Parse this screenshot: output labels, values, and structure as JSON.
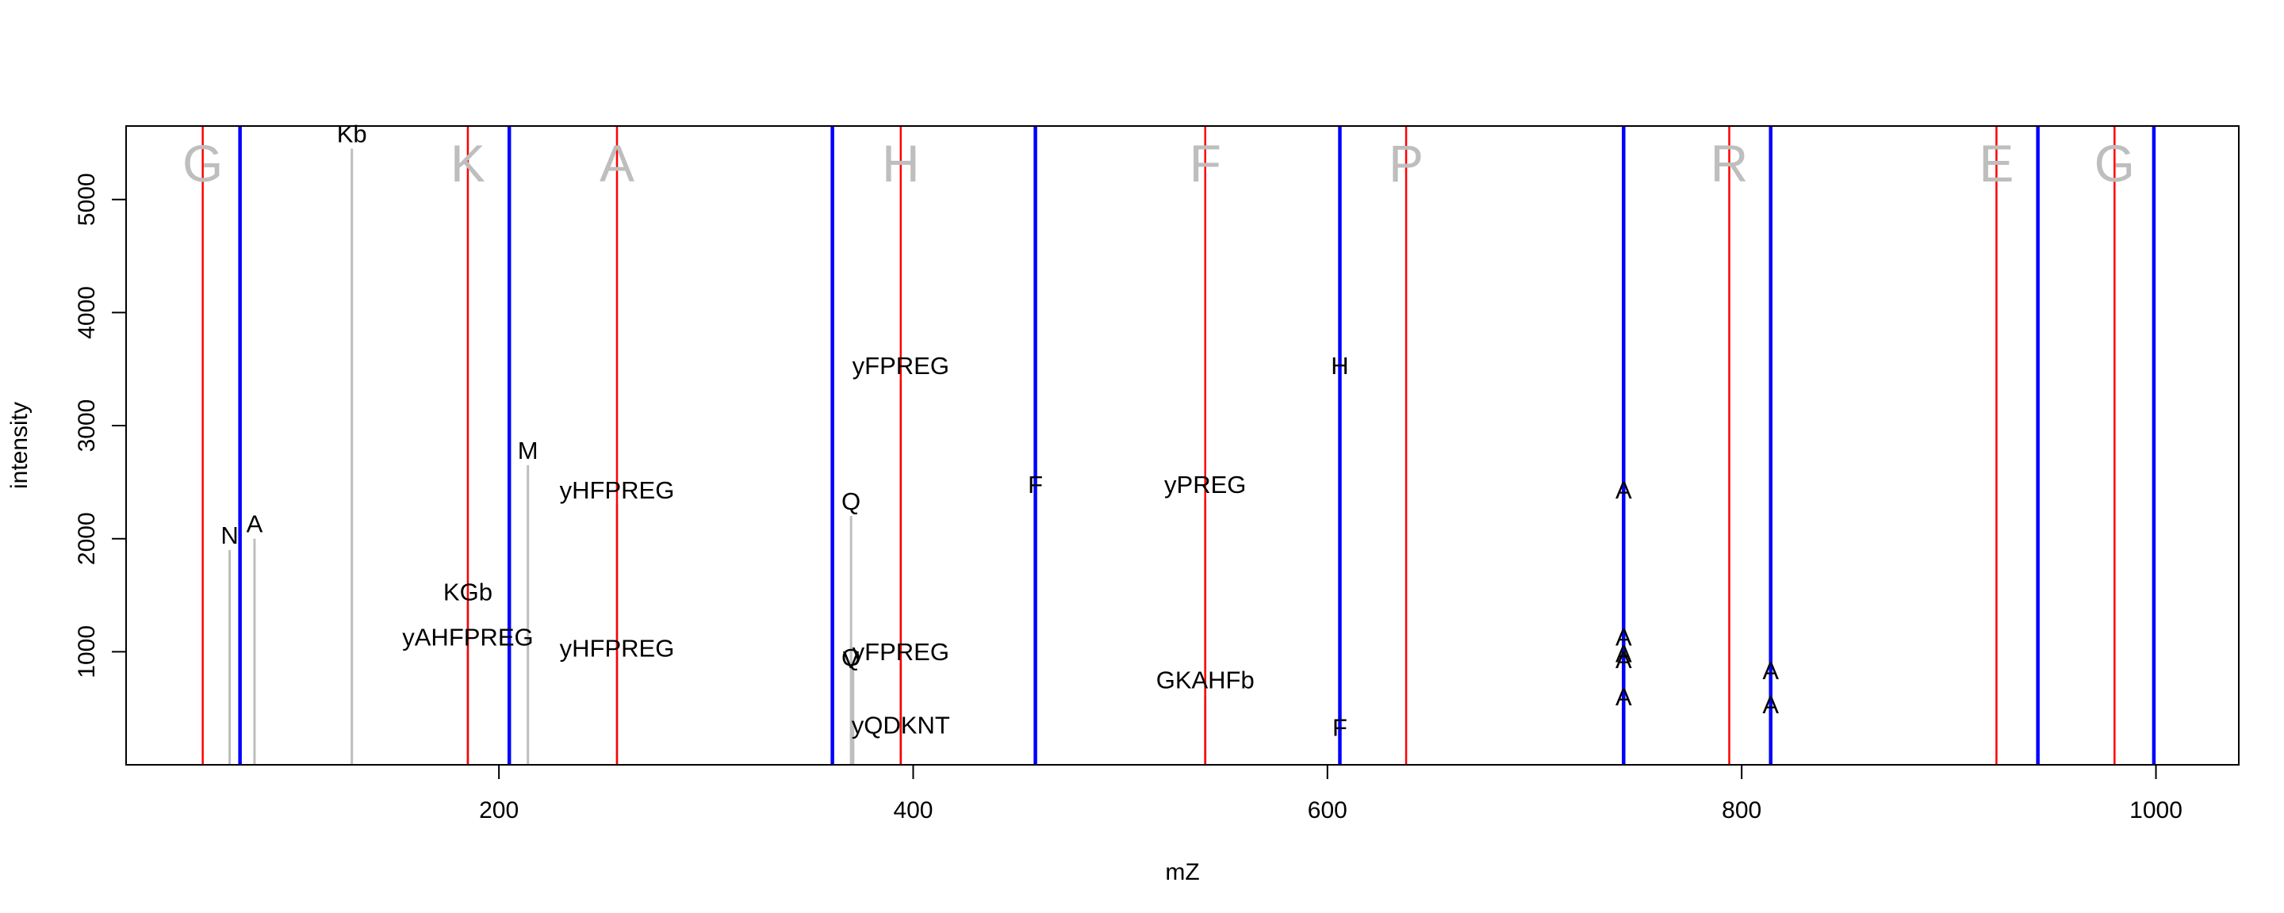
{
  "chart_data": {
    "type": "line",
    "xlabel": "mZ",
    "ylabel": "intensity",
    "xlim": [
      20,
      1040
    ],
    "ylim": [
      0,
      5650
    ],
    "x_ticks": [
      200,
      400,
      600,
      800,
      1000
    ],
    "x_tick_labels": [
      "200",
      "400",
      "600",
      "800",
      "1000"
    ],
    "y_ticks": [
      1000,
      2000,
      3000,
      4000,
      5000
    ],
    "y_tick_labels": [
      "1000",
      "2000",
      "3000",
      "4000",
      "5000"
    ],
    "grid": false,
    "colors": {
      "peak": "#bebebe",
      "red_line": "#ff0000",
      "blue_line": "#0000ff",
      "residue_letter": "#bebebe",
      "text": "#000000"
    },
    "residues": [
      {
        "x": 57,
        "label": "G"
      },
      {
        "x": 185,
        "label": "K"
      },
      {
        "x": 257,
        "label": "A"
      },
      {
        "x": 394,
        "label": "H"
      },
      {
        "x": 541,
        "label": "F"
      },
      {
        "x": 638,
        "label": "P"
      },
      {
        "x": 794,
        "label": "R"
      },
      {
        "x": 923,
        "label": "E"
      },
      {
        "x": 980,
        "label": "G"
      }
    ],
    "red_lines": [
      57,
      185,
      257,
      394,
      541,
      638,
      794,
      923,
      980
    ],
    "blue_lines": [
      75,
      205,
      361,
      459,
      606,
      743,
      814,
      943,
      999
    ],
    "peaks": [
      {
        "x": 70,
        "y": 1900
      },
      {
        "x": 82,
        "y": 2000
      },
      {
        "x": 129,
        "y": 5450
      },
      {
        "x": 185,
        "y": 1450
      },
      {
        "x": 185,
        "y": 1000
      },
      {
        "x": 214,
        "y": 2650
      },
      {
        "x": 257,
        "y": 2300
      },
      {
        "x": 257,
        "y": 900
      },
      {
        "x": 370,
        "y": 2200
      },
      {
        "x": 371,
        "y": 850
      },
      {
        "x": 371,
        "y": 200
      },
      {
        "x": 394,
        "y": 3400
      },
      {
        "x": 394,
        "y": 900
      },
      {
        "x": 459,
        "y": 2350
      },
      {
        "x": 541,
        "y": 2350
      },
      {
        "x": 541,
        "y": 600
      },
      {
        "x": 606,
        "y": 3400
      },
      {
        "x": 606,
        "y": 200
      },
      {
        "x": 743,
        "y": 2300
      },
      {
        "x": 743,
        "y": 1000
      },
      {
        "x": 743,
        "y": 850
      },
      {
        "x": 743,
        "y": 800
      },
      {
        "x": 743,
        "y": 450
      },
      {
        "x": 814,
        "y": 700
      },
      {
        "x": 814,
        "y": 400
      }
    ],
    "annotations": [
      {
        "x": 70,
        "y": 1900,
        "text": "N"
      },
      {
        "x": 82,
        "y": 2000,
        "text": "A"
      },
      {
        "x": 129,
        "y": 5450,
        "text": "Kb"
      },
      {
        "x": 185,
        "y": 1400,
        "text": "KGb"
      },
      {
        "x": 185,
        "y": 1000,
        "text": "yAHFPREG"
      },
      {
        "x": 214,
        "y": 2650,
        "text": "M"
      },
      {
        "x": 257,
        "y": 2300,
        "text": "yHFPREG"
      },
      {
        "x": 257,
        "y": 900,
        "text": "yHFPREG"
      },
      {
        "x": 370,
        "y": 2200,
        "text": "Q"
      },
      {
        "x": 370,
        "y": 820,
        "text": "Q"
      },
      {
        "x": 370,
        "y": 800,
        "text": "V"
      },
      {
        "x": 394,
        "y": 3400,
        "text": "yFPREG"
      },
      {
        "x": 394,
        "y": 870,
        "text": "yFPREG"
      },
      {
        "x": 394,
        "y": 220,
        "text": "yQDKNT"
      },
      {
        "x": 459,
        "y": 2350,
        "text": "F"
      },
      {
        "x": 541,
        "y": 2350,
        "text": "yPREG"
      },
      {
        "x": 541,
        "y": 620,
        "text": "GKAHFb"
      },
      {
        "x": 606,
        "y": 3400,
        "text": "H"
      },
      {
        "x": 606,
        "y": 200,
        "text": "F"
      },
      {
        "x": 743,
        "y": 2300,
        "text": "A"
      },
      {
        "x": 743,
        "y": 1000,
        "text": "A"
      },
      {
        "x": 743,
        "y": 850,
        "text": "A"
      },
      {
        "x": 743,
        "y": 800,
        "text": "A"
      },
      {
        "x": 743,
        "y": 470,
        "text": "A"
      },
      {
        "x": 814,
        "y": 700,
        "text": "A"
      },
      {
        "x": 814,
        "y": 400,
        "text": "A"
      }
    ]
  }
}
